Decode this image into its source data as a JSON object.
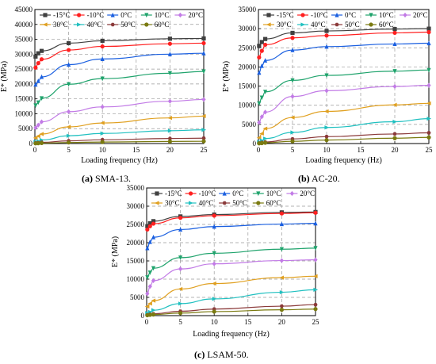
{
  "figure": {
    "captions": [
      {
        "letter": "(a)",
        "text": "SMA-13."
      },
      {
        "letter": "(b)",
        "text": "AC-20."
      },
      {
        "letter": "(c)",
        "text": "LSAM-50."
      }
    ]
  },
  "chart_data": [
    {
      "type": "line",
      "xlabel": "Loading frequency (Hz)",
      "ylabel": "E* (MPa)",
      "xlim": [
        0,
        25
      ],
      "ylim": [
        0,
        45000
      ],
      "xticks": [
        0,
        5,
        10,
        15,
        20,
        25
      ],
      "yticks": [
        0,
        5000,
        10000,
        15000,
        20000,
        25000,
        30000,
        35000,
        40000,
        45000
      ],
      "grid": true,
      "legend": "top, two rows",
      "x": [
        0.1,
        0.5,
        1,
        5,
        10,
        20,
        25
      ],
      "series": [
        {
          "name": "-15°C",
          "color": "#404040",
          "marker": "square",
          "values": [
            29200,
            30300,
            31100,
            33700,
            34500,
            35200,
            35300
          ]
        },
        {
          "name": "-10°C",
          "color": "#ff2020",
          "marker": "circle",
          "values": [
            25500,
            27000,
            28300,
            31400,
            32600,
            33500,
            33700
          ]
        },
        {
          "name": "0°C",
          "color": "#1a5fe0",
          "marker": "triangle",
          "values": [
            19800,
            21000,
            22400,
            26500,
            28400,
            30000,
            30300
          ]
        },
        {
          "name": "10°C",
          "color": "#1fa36c",
          "marker": "tri-down",
          "values": [
            12800,
            13800,
            15200,
            19900,
            21800,
            23600,
            24200
          ]
        },
        {
          "name": "20°C",
          "color": "#c27be6",
          "marker": "diamond",
          "values": [
            5300,
            6200,
            7300,
            10700,
            12300,
            14200,
            14800
          ]
        },
        {
          "name": "30°C",
          "color": "#e0a020",
          "marker": "tri-left",
          "values": [
            1900,
            2500,
            3200,
            5600,
            6900,
            8600,
            9200
          ]
        },
        {
          "name": "40°C",
          "color": "#20c0c0",
          "marker": "tri-right",
          "values": [
            500,
            800,
            1200,
            2600,
            3400,
            4300,
            4600
          ]
        },
        {
          "name": "50°C",
          "color": "#8b3a3a",
          "marker": "hexagon",
          "values": [
            150,
            250,
            400,
            900,
            1250,
            1700,
            1800
          ]
        },
        {
          "name": "60°C",
          "color": "#7a7a10",
          "marker": "circle",
          "values": [
            50,
            100,
            150,
            350,
            500,
            700,
            750
          ]
        }
      ]
    },
    {
      "type": "line",
      "xlabel": "Loading frequency (Hz)",
      "ylabel": "E* (MPa)",
      "xlim": [
        0,
        25
      ],
      "ylim": [
        0,
        35000
      ],
      "xticks": [
        0,
        5,
        10,
        15,
        20,
        25
      ],
      "yticks": [
        0,
        5000,
        10000,
        15000,
        20000,
        25000,
        30000,
        35000
      ],
      "grid": true,
      "legend": "top, two rows",
      "x": [
        0.1,
        0.5,
        1,
        5,
        10,
        20,
        25
      ],
      "series": [
        {
          "name": "-15°C",
          "color": "#404040",
          "marker": "square",
          "values": [
            25500,
            26500,
            27300,
            28900,
            29400,
            29900,
            30000
          ]
        },
        {
          "name": "-10°C",
          "color": "#ff2020",
          "marker": "circle",
          "values": [
            22500,
            24200,
            25800,
            27600,
            28200,
            28900,
            29100
          ]
        },
        {
          "name": "0°C",
          "color": "#1a5fe0",
          "marker": "triangle",
          "values": [
            18500,
            20300,
            21700,
            24400,
            25300,
            26000,
            26200
          ]
        },
        {
          "name": "10°C",
          "color": "#1fa36c",
          "marker": "tri-down",
          "values": [
            10500,
            12000,
            13500,
            16500,
            17800,
            18900,
            19200
          ]
        },
        {
          "name": "20°C",
          "color": "#c27be6",
          "marker": "diamond",
          "values": [
            5500,
            7000,
            8200,
            12300,
            13800,
            14900,
            15200
          ]
        },
        {
          "name": "30°C",
          "color": "#e0a020",
          "marker": "tri-left",
          "values": [
            1500,
            2600,
            3900,
            6800,
            8400,
            10100,
            10500
          ]
        },
        {
          "name": "40°C",
          "color": "#20c0c0",
          "marker": "tri-right",
          "values": [
            400,
            800,
            1300,
            2900,
            4200,
            5700,
            6500
          ]
        },
        {
          "name": "50°C",
          "color": "#8b3a3a",
          "marker": "hexagon",
          "values": [
            100,
            250,
            400,
            1200,
            1800,
            2500,
            2800
          ]
        },
        {
          "name": "60°C",
          "color": "#7a7a10",
          "marker": "circle",
          "values": [
            50,
            100,
            200,
            600,
            900,
            1400,
            1600
          ]
        }
      ]
    },
    {
      "type": "line",
      "xlabel": "Loading frequency (Hz)",
      "ylabel": "E* (MPa)",
      "xlim": [
        0,
        25
      ],
      "ylim": [
        0,
        35000
      ],
      "xticks": [
        0,
        5,
        10,
        15,
        20,
        25
      ],
      "yticks": [
        0,
        5000,
        10000,
        15000,
        20000,
        25000,
        30000,
        35000
      ],
      "grid": true,
      "legend": "top, two rows",
      "x": [
        0.1,
        0.5,
        1,
        5,
        10,
        20,
        25
      ],
      "series": [
        {
          "name": "-15°C",
          "color": "#404040",
          "marker": "square",
          "values": [
            24500,
            25300,
            25900,
            27200,
            27700,
            28300,
            28400
          ]
        },
        {
          "name": "-10°C",
          "color": "#ff2020",
          "marker": "circle",
          "values": [
            23600,
            24500,
            25200,
            26800,
            27400,
            28000,
            28200
          ]
        },
        {
          "name": "0°C",
          "color": "#1a5fe0",
          "marker": "triangle",
          "values": [
            18500,
            20200,
            21500,
            23600,
            24400,
            25100,
            25300
          ]
        },
        {
          "name": "10°C",
          "color": "#1fa36c",
          "marker": "tri-down",
          "values": [
            10500,
            11800,
            13000,
            15900,
            17100,
            18200,
            18500
          ]
        },
        {
          "name": "20°C",
          "color": "#c27be6",
          "marker": "diamond",
          "values": [
            6000,
            8000,
            9600,
            12800,
            14200,
            15100,
            15300
          ]
        },
        {
          "name": "30°C",
          "color": "#e0a020",
          "marker": "tri-left",
          "values": [
            2500,
            3300,
            4100,
            7300,
            8800,
            10400,
            10800
          ]
        },
        {
          "name": "40°C",
          "color": "#20c0c0",
          "marker": "tri-right",
          "values": [
            700,
            1000,
            1500,
            3300,
            4600,
            6400,
            7100
          ]
        },
        {
          "name": "50°C",
          "color": "#8b3a3a",
          "marker": "hexagon",
          "values": [
            200,
            350,
            500,
            1200,
            1800,
            2600,
            3000
          ]
        },
        {
          "name": "60°C",
          "color": "#7a7a10",
          "marker": "circle",
          "values": [
            100,
            200,
            300,
            700,
            1100,
            1600,
            1800
          ]
        }
      ]
    }
  ]
}
